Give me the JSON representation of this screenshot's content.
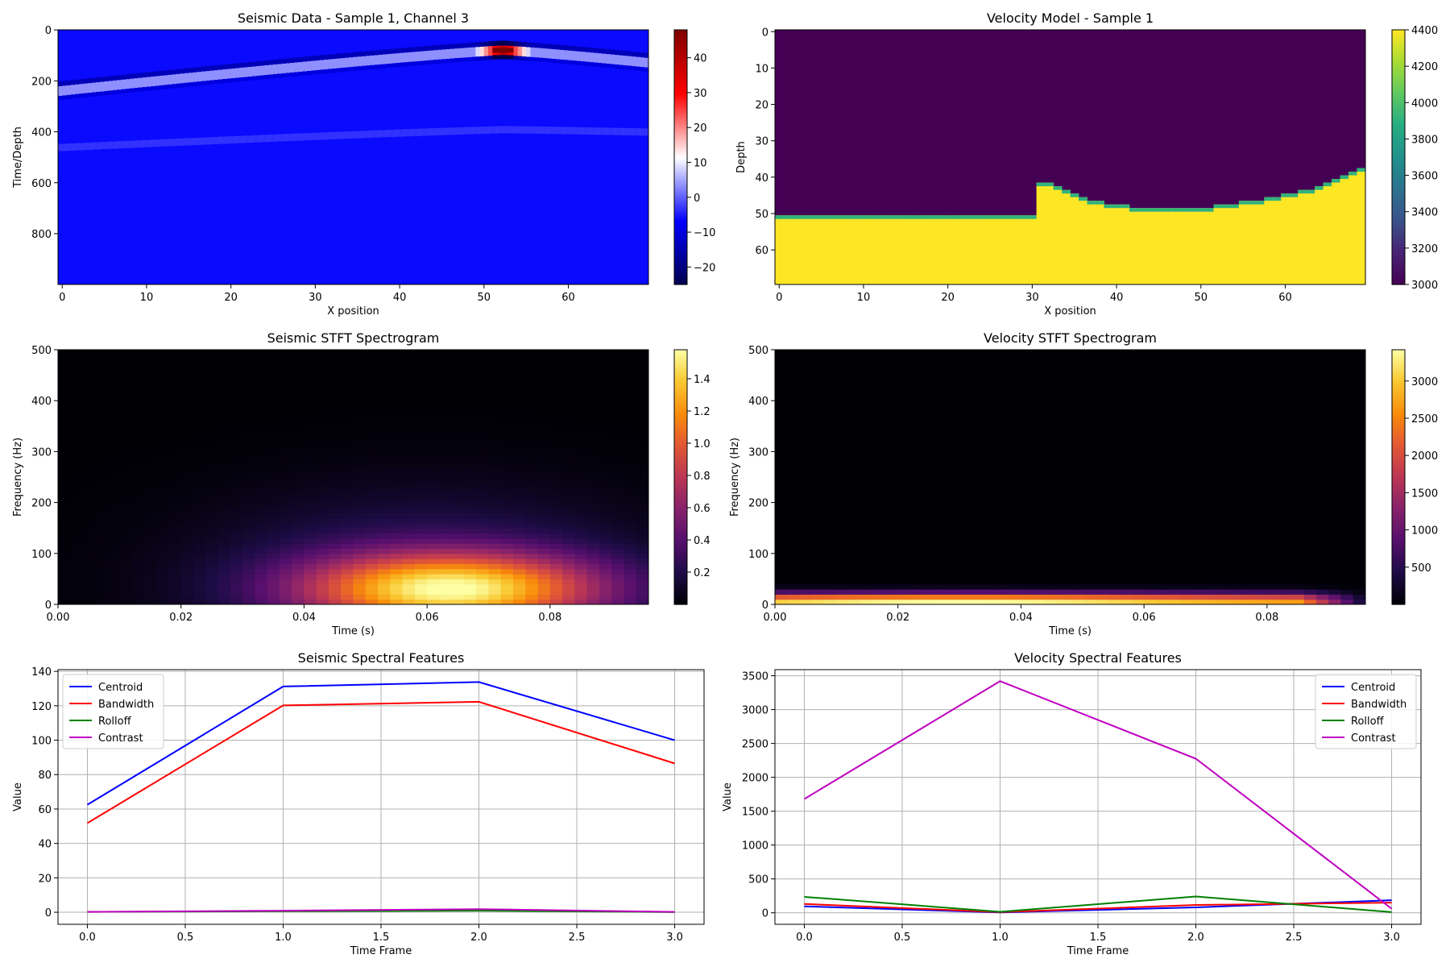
{
  "chart_data": [
    {
      "id": "seismic-data",
      "type": "heatmap",
      "title": "Seismic Data - Sample 1, Channel 3",
      "xlabel": "X position",
      "ylabel": "Time/Depth",
      "xlim": [
        -0.5,
        69.5
      ],
      "ylim_inverted": [
        999.5,
        -0.5
      ],
      "xticks": [
        0,
        10,
        20,
        30,
        40,
        50,
        60
      ],
      "yticks": [
        0,
        200,
        400,
        600,
        800
      ],
      "colormap": "seismic",
      "colorbar": {
        "min": -25,
        "max": 48,
        "ticks": [
          -20,
          -10,
          0,
          10,
          20,
          30,
          40
        ]
      },
      "features": [
        {
          "name": "direct-arrival",
          "apex_x": 52,
          "apex_t": 80,
          "left_t": 240,
          "right_t": 130,
          "peak": 48,
          "trough": -25
        },
        {
          "name": "faint-reflection",
          "apex_x": 52,
          "apex_t": 390,
          "left_t": 460,
          "right_t": 400
        }
      ]
    },
    {
      "id": "velocity-model",
      "type": "heatmap",
      "title": "Velocity Model - Sample 1",
      "xlabel": "X position",
      "ylabel": "Depth",
      "xlim": [
        -0.5,
        69.5
      ],
      "ylim_inverted": [
        69.5,
        -0.5
      ],
      "xticks": [
        0,
        10,
        20,
        30,
        40,
        50,
        60
      ],
      "yticks": [
        0,
        10,
        20,
        30,
        40,
        50,
        60
      ],
      "colormap": "viridis",
      "colorbar": {
        "min": 3000,
        "max": 4400,
        "ticks": [
          3000,
          3200,
          3400,
          3600,
          3800,
          4000,
          4200,
          4400
        ]
      },
      "layers": {
        "upper_velocity": 3000,
        "lower_velocity": 4400
      },
      "interface_depth_by_x": [
        51,
        51,
        51,
        51,
        51,
        51,
        51,
        51,
        51,
        51,
        51,
        51,
        51,
        51,
        51,
        51,
        51,
        51,
        51,
        51,
        51,
        51,
        51,
        51,
        51,
        51,
        51,
        51,
        51,
        51,
        51,
        42,
        42,
        43,
        44,
        45,
        46,
        47,
        47,
        48,
        48,
        48,
        49,
        49,
        49,
        49,
        49,
        49,
        49,
        49,
        49,
        49,
        48,
        48,
        48,
        47,
        47,
        47,
        46,
        46,
        45,
        45,
        44,
        44,
        43,
        42,
        41,
        40,
        39,
        38
      ]
    },
    {
      "id": "seismic-stft",
      "type": "heatmap",
      "title": "Seismic STFT Spectrogram",
      "xlabel": "Time (s)",
      "ylabel": "Frequency (Hz)",
      "xlim": [
        0,
        0.096
      ],
      "ylim": [
        0,
        500
      ],
      "xticks": [
        0.0,
        0.02,
        0.04,
        0.06,
        0.08
      ],
      "yticks": [
        0,
        100,
        200,
        300,
        400,
        500
      ],
      "colormap": "inferno",
      "colorbar": {
        "min": 0,
        "max": 1.58,
        "ticks": [
          0.2,
          0.4,
          0.6,
          0.8,
          1.0,
          1.2,
          1.4
        ]
      },
      "peak": {
        "time": 0.064,
        "frequency": 30,
        "value": 1.58
      }
    },
    {
      "id": "velocity-stft",
      "type": "heatmap",
      "title": "Velocity STFT Spectrogram",
      "xlabel": "Time (s)",
      "ylabel": "Frequency (Hz)",
      "xlim": [
        0,
        0.096
      ],
      "ylim": [
        0,
        500
      ],
      "xticks": [
        0.0,
        0.02,
        0.04,
        0.06,
        0.08
      ],
      "yticks": [
        0,
        100,
        200,
        300,
        400,
        500
      ],
      "colormap": "inferno",
      "colorbar": {
        "min": 0,
        "max": 3420,
        "ticks": [
          500,
          1000,
          1500,
          2000,
          2500,
          3000
        ]
      },
      "peak": {
        "time": 0.03,
        "frequency": 5,
        "value": 3420
      }
    },
    {
      "id": "seismic-features",
      "type": "line",
      "title": "Seismic Spectral Features",
      "xlabel": "Time Frame",
      "ylabel": "Value",
      "xlim": [
        -0.15,
        3.15
      ],
      "ylim": [
        -7,
        141
      ],
      "xticks": [
        0.0,
        0.5,
        1.0,
        1.5,
        2.0,
        2.5,
        3.0
      ],
      "yticks": [
        0,
        20,
        40,
        60,
        80,
        100,
        120,
        140
      ],
      "grid": true,
      "legend": "upper left",
      "x": [
        0,
        1,
        2,
        3
      ],
      "series": [
        {
          "name": "Centroid",
          "color": "#0000ff",
          "values": [
            62.5,
            131.2,
            133.8,
            100.0
          ]
        },
        {
          "name": "Bandwidth",
          "color": "#ff0000",
          "values": [
            51.8,
            120.2,
            122.3,
            86.5
          ]
        },
        {
          "name": "Rolloff",
          "color": "#008000",
          "values": [
            0.2,
            0.6,
            0.9,
            0.1
          ]
        },
        {
          "name": "Contrast",
          "color": "#bf00bf",
          "values": [
            0.2,
            0.9,
            1.8,
            0.2
          ]
        }
      ]
    },
    {
      "id": "velocity-features",
      "type": "line",
      "title": "Velocity Spectral Features",
      "xlabel": "Time Frame",
      "ylabel": "Value",
      "xlim": [
        -0.15,
        3.15
      ],
      "ylim": [
        -170,
        3590
      ],
      "xticks": [
        0.0,
        0.5,
        1.0,
        1.5,
        2.0,
        2.5,
        3.0
      ],
      "yticks": [
        0,
        500,
        1000,
        1500,
        2000,
        2500,
        3000,
        3500
      ],
      "grid": true,
      "legend": "upper right",
      "x": [
        0,
        1,
        2,
        3
      ],
      "series": [
        {
          "name": "Centroid",
          "color": "#0000ff",
          "values": [
            95,
            5,
            80,
            185
          ]
        },
        {
          "name": "Bandwidth",
          "color": "#ff0000",
          "values": [
            130,
            10,
            115,
            150
          ]
        },
        {
          "name": "Rolloff",
          "color": "#008000",
          "values": [
            235,
            15,
            240,
            10
          ]
        },
        {
          "name": "Contrast",
          "color": "#bf00bf",
          "values": [
            1680,
            3420,
            2275,
            60
          ]
        }
      ]
    }
  ]
}
